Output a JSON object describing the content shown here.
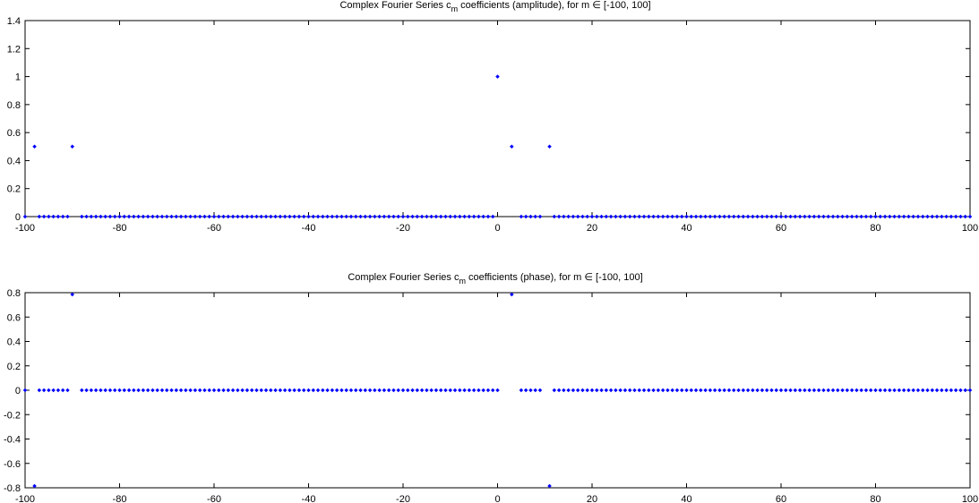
{
  "chart_data": [
    {
      "type": "scatter",
      "title": {
        "prefix": "Complex Fourier Series c",
        "subscript": "m",
        "suffix": " coefficients (amplitude), for m ∈ [-100, 100]"
      },
      "xlim": [
        -100,
        100
      ],
      "ylim": [
        0,
        1.4
      ],
      "xticks": [
        "-100",
        "-80",
        "-60",
        "-40",
        "-20",
        "0",
        "20",
        "40",
        "60",
        "80",
        "100"
      ],
      "yticks": [
        "0",
        "0.2",
        "0.4",
        "0.6",
        "0.8",
        "1",
        "1.2",
        "1.4"
      ],
      "grid": false,
      "marker_color": "#0000ff",
      "m_range": [
        -100,
        100
      ],
      "default_value": 0,
      "missing_m": [
        -99,
        -89,
        1,
        2,
        4,
        10
      ],
      "points": [
        {
          "x": -98,
          "y": 0.5
        },
        {
          "x": -90,
          "y": 0.5
        },
        {
          "x": 0,
          "y": 1.0
        },
        {
          "x": 3,
          "y": 0.5
        },
        {
          "x": 11,
          "y": 0.5
        }
      ]
    },
    {
      "type": "scatter",
      "title": {
        "prefix": "Complex Fourier Series c",
        "subscript": "m",
        "suffix": " coefficients (phase), for m ∈ [-100, 100]"
      },
      "xlim": [
        -100,
        100
      ],
      "ylim": [
        -0.8,
        0.8
      ],
      "xticks": [
        "-100",
        "-80",
        "-60",
        "-40",
        "-20",
        "0",
        "20",
        "40",
        "60",
        "80",
        "100"
      ],
      "yticks": [
        "-0.8",
        "-0.6",
        "-0.4",
        "-0.2",
        "0",
        "0.2",
        "0.4",
        "0.6",
        "0.8"
      ],
      "grid": false,
      "marker_color": "#0000ff",
      "m_range": [
        -100,
        100
      ],
      "default_value": 0,
      "missing_m": [
        -99,
        -89,
        1,
        2,
        4,
        10
      ],
      "points": [
        {
          "x": -98,
          "y": -0.785
        },
        {
          "x": -90,
          "y": 0.785
        },
        {
          "x": 3,
          "y": 0.785
        },
        {
          "x": 11,
          "y": -0.785
        }
      ]
    }
  ]
}
